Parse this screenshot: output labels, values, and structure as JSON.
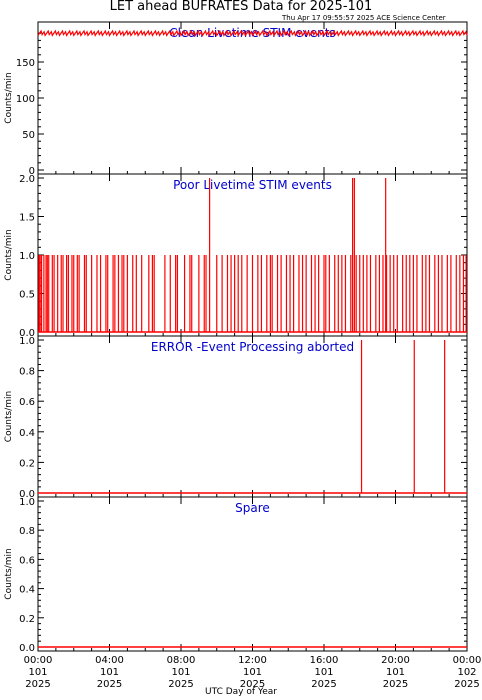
{
  "title": "LET ahead BUFRATES Data for 2025-101",
  "timestamp": "Thu Apr 17 09:55:57 2025 ACE Science Center",
  "xlabel": "UTC Day of Year",
  "colors": {
    "data": "#ff0000",
    "panel_label": "#0000cc",
    "axis": "#000000"
  },
  "x_ticks": [
    {
      "hours": 0,
      "time": "00:00",
      "doy": "101",
      "year": "2025"
    },
    {
      "hours": 4,
      "time": "04:00",
      "doy": "101",
      "year": "2025"
    },
    {
      "hours": 8,
      "time": "08:00",
      "doy": "101",
      "year": "2025"
    },
    {
      "hours": 12,
      "time": "12:00",
      "doy": "101",
      "year": "2025"
    },
    {
      "hours": 16,
      "time": "16:00",
      "doy": "101",
      "year": "2025"
    },
    {
      "hours": 20,
      "time": "20:00",
      "doy": "101",
      "year": "2025"
    },
    {
      "hours": 24,
      "time": "00:00",
      "doy": "102",
      "year": "2025"
    }
  ],
  "chart_data": [
    {
      "type": "line",
      "label": "Clean Livetime STIM events",
      "ylabel": "Counts/min",
      "ylim": [
        0,
        200
      ],
      "yticks": [
        "0",
        "50",
        "100",
        "150"
      ],
      "series": [
        {
          "baseline": 190,
          "jitter": 3
        }
      ],
      "xlim_hours": [
        0,
        24
      ]
    },
    {
      "type": "line",
      "label": "Poor Livetime STIM events",
      "ylabel": "Counts/min",
      "ylim": [
        0,
        2
      ],
      "yticks": [
        "0.0",
        "0.5",
        "1.0",
        "1.5",
        "2.0"
      ],
      "series": [
        {
          "baseline": 0,
          "spikes_hours": [
            0.05,
            0.12,
            0.2,
            0.33,
            0.45,
            0.52,
            0.6,
            0.8,
            0.9,
            1.1,
            1.3,
            1.4,
            1.6,
            1.7,
            1.9,
            2.0,
            2.2,
            2.3,
            2.6,
            2.7,
            3.0,
            3.3,
            3.5,
            3.8,
            3.9,
            4.2,
            4.3,
            4.5,
            4.7,
            4.8,
            5.0,
            5.3,
            5.5,
            5.8,
            6.2,
            6.4,
            6.5,
            7.1,
            7.4,
            7.7,
            7.8,
            8.2,
            8.5,
            8.6,
            9.0,
            9.3,
            9.4,
            10.0,
            10.3,
            10.6,
            10.8,
            11.0,
            11.2,
            11.4,
            11.7,
            12.0,
            12.3,
            12.5,
            12.8,
            13.0,
            13.1,
            13.4,
            13.6,
            13.9,
            14.1,
            14.3,
            14.6,
            14.8,
            15.0,
            15.3,
            15.5,
            15.7,
            16.0,
            16.1,
            16.3,
            16.6,
            16.8,
            17.0,
            17.2,
            17.5,
            17.8,
            18.0,
            18.2,
            18.4,
            18.6,
            18.9,
            19.1,
            19.3,
            19.5,
            19.7,
            19.9,
            20.1,
            20.4,
            20.6,
            20.8,
            21.0,
            21.2,
            21.5,
            21.7,
            21.9,
            22.2,
            22.4,
            22.6,
            22.9,
            23.1,
            23.4,
            23.6,
            23.8,
            23.95
          ],
          "spikes_value": 1,
          "high_spikes_hours": [
            9.6,
            17.6,
            17.7,
            19.45
          ],
          "high_spikes_value": 2
        }
      ],
      "xlim_hours": [
        0,
        24
      ]
    },
    {
      "type": "line",
      "label": "ERROR -Event Processing aborted",
      "ylabel": "Counts/min",
      "ylim": [
        0,
        1
      ],
      "yticks": [
        "0.0",
        "0.2",
        "0.4",
        "0.6",
        "0.8",
        "1.0"
      ],
      "series": [
        {
          "baseline": 0,
          "spikes_hours": [
            18.1,
            21.05,
            22.75
          ],
          "spikes_value": 1
        }
      ],
      "xlim_hours": [
        0,
        24
      ]
    },
    {
      "type": "line",
      "label": "Spare",
      "ylabel": "Counts/min",
      "ylim": [
        0,
        1
      ],
      "yticks": [
        "0.0",
        "0.2",
        "0.4",
        "0.6",
        "0.8",
        "1.0"
      ],
      "series": [
        {
          "baseline": 0
        }
      ],
      "xlim_hours": [
        0,
        24
      ]
    }
  ]
}
